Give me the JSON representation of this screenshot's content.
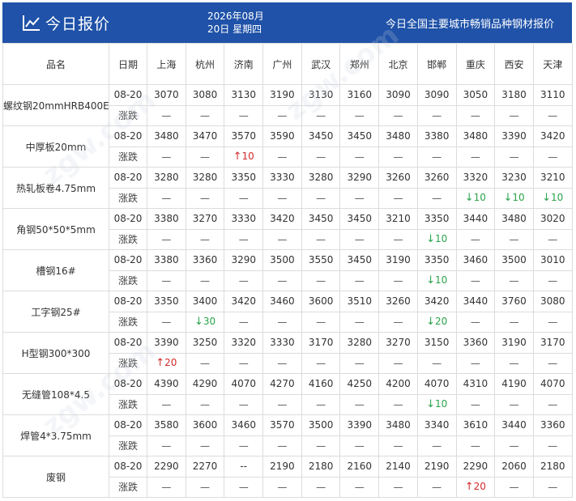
{
  "header": {
    "title": "今日报价",
    "date_line1": "2026年08月",
    "date_line2": "20日 星期四",
    "subtitle": "今日全国主要城市畅销品种钢材报价"
  },
  "table": {
    "col_product": "品名",
    "col_date": "日期",
    "cities": [
      "上海",
      "杭州",
      "济南",
      "广州",
      "武汉",
      "郑州",
      "北京",
      "邯郸",
      "重庆",
      "西安",
      "天津"
    ],
    "change_label": "涨跌",
    "dash": "—",
    "products": [
      {
        "name": "螺纹钢20mmHRB400E",
        "date": "08-20",
        "prices": [
          "3070",
          "3080",
          "3130",
          "3190",
          "3130",
          "3160",
          "3090",
          "3090",
          "3050",
          "3180",
          "3110"
        ],
        "changes": [
          null,
          null,
          null,
          null,
          null,
          null,
          null,
          null,
          null,
          null,
          null
        ]
      },
      {
        "name": "中厚板20mm",
        "date": "08-20",
        "prices": [
          "3480",
          "3470",
          "3570",
          "3590",
          "3450",
          "3450",
          "3480",
          "3380",
          "3480",
          "3390",
          "3420"
        ],
        "changes": [
          null,
          null,
          {
            "dir": "up",
            "val": "10"
          },
          null,
          null,
          null,
          null,
          null,
          null,
          null,
          null
        ]
      },
      {
        "name": "热轧板卷4.75mm",
        "date": "08-20",
        "prices": [
          "3280",
          "3280",
          "3350",
          "3330",
          "3280",
          "3290",
          "3260",
          "3260",
          "3320",
          "3230",
          "3210"
        ],
        "changes": [
          null,
          null,
          null,
          null,
          null,
          null,
          null,
          null,
          {
            "dir": "down",
            "val": "10"
          },
          {
            "dir": "down",
            "val": "10"
          },
          {
            "dir": "down",
            "val": "10"
          }
        ]
      },
      {
        "name": "角钢50*50*5mm",
        "date": "08-20",
        "prices": [
          "3380",
          "3270",
          "3330",
          "3420",
          "3450",
          "3450",
          "3210",
          "3350",
          "3440",
          "3480",
          "3020"
        ],
        "changes": [
          null,
          null,
          null,
          null,
          null,
          null,
          null,
          {
            "dir": "down",
            "val": "10"
          },
          null,
          null,
          null
        ]
      },
      {
        "name": "槽钢16#",
        "date": "08-20",
        "prices": [
          "3380",
          "3360",
          "3290",
          "3500",
          "3550",
          "3450",
          "3190",
          "3350",
          "3460",
          "3500",
          "3010"
        ],
        "changes": [
          null,
          null,
          null,
          null,
          null,
          null,
          null,
          {
            "dir": "down",
            "val": "10"
          },
          null,
          null,
          null
        ]
      },
      {
        "name": "工字钢25#",
        "date": "08-20",
        "prices": [
          "3350",
          "3400",
          "3420",
          "3460",
          "3600",
          "3510",
          "3260",
          "3420",
          "3440",
          "3760",
          "3080"
        ],
        "changes": [
          null,
          {
            "dir": "down",
            "val": "30"
          },
          null,
          null,
          null,
          null,
          null,
          {
            "dir": "down",
            "val": "20"
          },
          null,
          null,
          null
        ]
      },
      {
        "name": "H型钢300*300",
        "date": "08-20",
        "prices": [
          "3390",
          "3250",
          "3320",
          "3330",
          "3170",
          "3280",
          "3270",
          "3150",
          "3360",
          "3190",
          "3170"
        ],
        "changes": [
          {
            "dir": "up",
            "val": "20"
          },
          null,
          null,
          null,
          null,
          null,
          null,
          null,
          null,
          null,
          null
        ]
      },
      {
        "name": "无缝管108*4.5",
        "date": "08-20",
        "prices": [
          "4390",
          "4290",
          "4070",
          "4270",
          "4160",
          "4250",
          "4200",
          "4070",
          "4310",
          "4190",
          "4070"
        ],
        "changes": [
          null,
          null,
          null,
          null,
          null,
          null,
          null,
          {
            "dir": "down",
            "val": "10"
          },
          null,
          null,
          null
        ]
      },
      {
        "name": "焊管4*3.75mm",
        "date": "08-20",
        "prices": [
          "3580",
          "3600",
          "3460",
          "3570",
          "3500",
          "3390",
          "3480",
          "3340",
          "3610",
          "3440",
          "3360"
        ],
        "changes": [
          null,
          null,
          null,
          null,
          null,
          null,
          null,
          null,
          null,
          null,
          null
        ]
      },
      {
        "name": "废钢",
        "date": "08-20",
        "prices": [
          "2290",
          "2270",
          "--",
          "2190",
          "2180",
          "2160",
          "2140",
          "2190",
          "2290",
          "2060",
          "2180"
        ],
        "changes": [
          null,
          null,
          null,
          null,
          null,
          null,
          null,
          null,
          {
            "dir": "up",
            "val": "20"
          },
          null,
          null
        ]
      }
    ]
  }
}
